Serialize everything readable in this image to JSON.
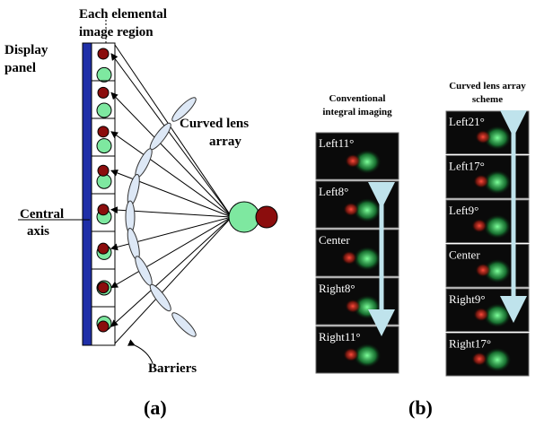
{
  "panel_a": {
    "region_label": [
      "Each elemental",
      "image region"
    ],
    "display_label": [
      "Display",
      "panel"
    ],
    "lens_label": [
      "Curved lens",
      "array"
    ],
    "axis_label": [
      "Central",
      "axis"
    ],
    "barriers_label": "Barriers",
    "caption": "(a)"
  },
  "panel_b": {
    "caption": "(b)",
    "conventional": {
      "header": [
        "Conventional",
        "integral imaging"
      ],
      "frames": [
        "Left11°",
        "Left8°",
        "Center",
        "Right8°",
        "Right11°"
      ]
    },
    "curved": {
      "header": [
        "Curved lens array",
        "scheme"
      ],
      "frames": [
        "Left21°",
        "Left17°",
        "Left9°",
        "Center",
        "Right9°",
        "Right17°"
      ]
    }
  }
}
